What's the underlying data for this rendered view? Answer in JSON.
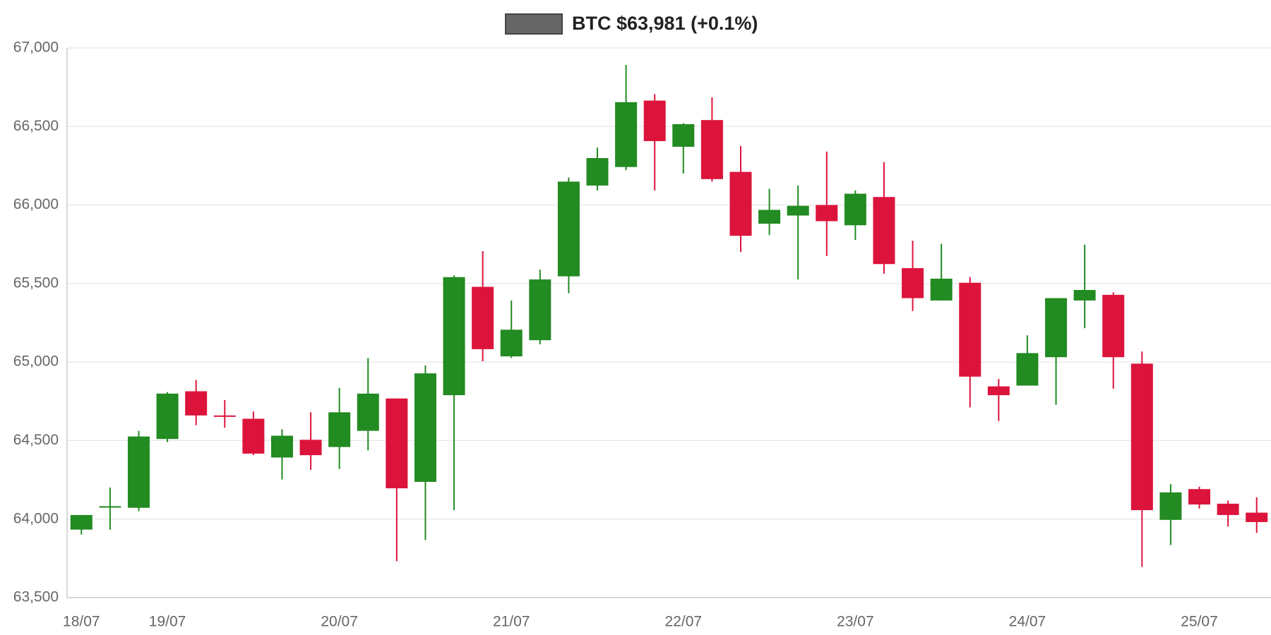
{
  "chart_data": {
    "type": "candlestick",
    "categories": [
      "18/07",
      null,
      null,
      "19/07",
      null,
      null,
      null,
      null,
      null,
      "20/07",
      null,
      null,
      null,
      null,
      null,
      "21/07",
      null,
      null,
      null,
      null,
      null,
      "22/07",
      null,
      null,
      null,
      null,
      null,
      "23/07",
      null,
      null,
      null,
      null,
      null,
      "24/07",
      null,
      null,
      null,
      null,
      null,
      "25/07",
      null,
      null
    ],
    "series": [
      {
        "name": "BTC $63,981 (+0.1%)",
        "color": "#666666",
        "up_color": "#228b22",
        "down_color": "#dc143c",
        "open": [
          63933,
          64075,
          64072,
          64510,
          64814,
          64660,
          64639,
          64392,
          64505,
          64459,
          64562,
          64768,
          64237,
          64789,
          65479,
          65036,
          65139,
          65546,
          66124,
          66242,
          66665,
          66371,
          66541,
          66211,
          65881,
          65933,
          66000,
          65871,
          66051,
          65598,
          65392,
          65505,
          64845,
          64850,
          65031,
          65392,
          65428,
          64990,
          63995,
          64191,
          64098,
          64041
        ],
        "high": [
          64026,
          64201,
          64562,
          64809,
          64886,
          64758,
          64685,
          64572,
          64680,
          64835,
          65026,
          64768,
          64979,
          65551,
          65706,
          65392,
          65588,
          66175,
          66366,
          66892,
          66706,
          66521,
          66686,
          66376,
          66103,
          66124,
          66340,
          66093,
          66273,
          65773,
          65753,
          65541,
          64892,
          65170,
          65407,
          65747,
          65443,
          65067,
          64222,
          64206,
          64118,
          64139
        ],
        "low": [
          63902,
          63933,
          64051,
          64490,
          64598,
          64582,
          64407,
          64252,
          64314,
          64319,
          64438,
          63732,
          63866,
          64057,
          65005,
          65026,
          65113,
          65438,
          66093,
          66222,
          66093,
          66201,
          66149,
          65701,
          65809,
          65526,
          65675,
          65778,
          65562,
          65325,
          65392,
          64711,
          64624,
          64850,
          64727,
          65216,
          64830,
          63696,
          63835,
          64067,
          63953,
          63912
        ],
        "close": [
          64026,
          64082,
          64526,
          64799,
          64660,
          64655,
          64417,
          64531,
          64407,
          64680,
          64799,
          64196,
          64928,
          65541,
          65082,
          65206,
          65526,
          66149,
          66299,
          66655,
          66407,
          66515,
          66165,
          65804,
          65969,
          65995,
          65897,
          66072,
          65624,
          65407,
          65531,
          64907,
          64789,
          65057,
          65407,
          65459,
          65031,
          64057,
          64170,
          64093,
          64026,
          63981
        ]
      }
    ],
    "ylim": [
      63500,
      67000
    ],
    "yticks": [
      {
        "value": 63500,
        "label": "63,500"
      },
      {
        "value": 64000,
        "label": "64,000"
      },
      {
        "value": 64500,
        "label": "64,500"
      },
      {
        "value": 65000,
        "label": "65,000"
      },
      {
        "value": 65500,
        "label": "65,500"
      },
      {
        "value": 66000,
        "label": "66,000"
      },
      {
        "value": 66500,
        "label": "66,500"
      },
      {
        "value": 67000,
        "label": "67,000"
      }
    ],
    "grid": true
  }
}
